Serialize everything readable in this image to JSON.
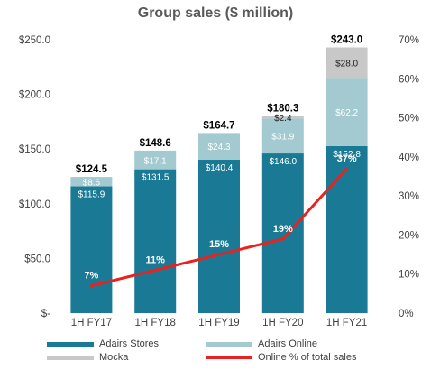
{
  "chart_data": {
    "type": "bar",
    "title": "Group sales ($ million)",
    "categories": [
      "1H FY17",
      "1H FY18",
      "1H FY19",
      "1H FY20",
      "1H FY21"
    ],
    "ylim": [
      0,
      250
    ],
    "y_ticks": [
      "$-",
      "$50.0",
      "$100.0",
      "$150.0",
      "$200.0",
      "$250.0"
    ],
    "y2lim": [
      0,
      70
    ],
    "y2_ticks": [
      "0%",
      "10%",
      "20%",
      "30%",
      "40%",
      "50%",
      "60%",
      "70%"
    ],
    "grid": false,
    "legend_position": "bottom",
    "series": [
      {
        "name": "Adairs Stores",
        "color": "#1a7a95",
        "values": [
          115.9,
          131.5,
          140.4,
          146.0,
          152.8
        ],
        "labels": [
          "$115.9",
          "$131.5",
          "$140.4",
          "$146.0",
          "$152.8"
        ]
      },
      {
        "name": "Adairs Online",
        "color": "#a3c9d1",
        "values": [
          8.6,
          17.1,
          24.3,
          31.9,
          62.2
        ],
        "labels": [
          "$8.6",
          "$17.1",
          "$24.3",
          "$31.9",
          "$62.2"
        ]
      },
      {
        "name": "Mocka",
        "color": "#c8c8c8",
        "values": [
          0,
          0,
          0,
          2.4,
          28.0
        ],
        "labels": [
          "",
          "",
          "",
          "$2.4",
          "$28.0"
        ]
      }
    ],
    "totals": [
      "$124.5",
      "$148.6",
      "$164.7",
      "$180.3",
      "$243.0"
    ],
    "line_series": {
      "name": "Online % of total sales",
      "color": "#e8221f",
      "values": [
        7,
        11,
        15,
        19,
        37
      ],
      "labels": [
        "7%",
        "11%",
        "15%",
        "19%",
        "37%"
      ]
    }
  }
}
